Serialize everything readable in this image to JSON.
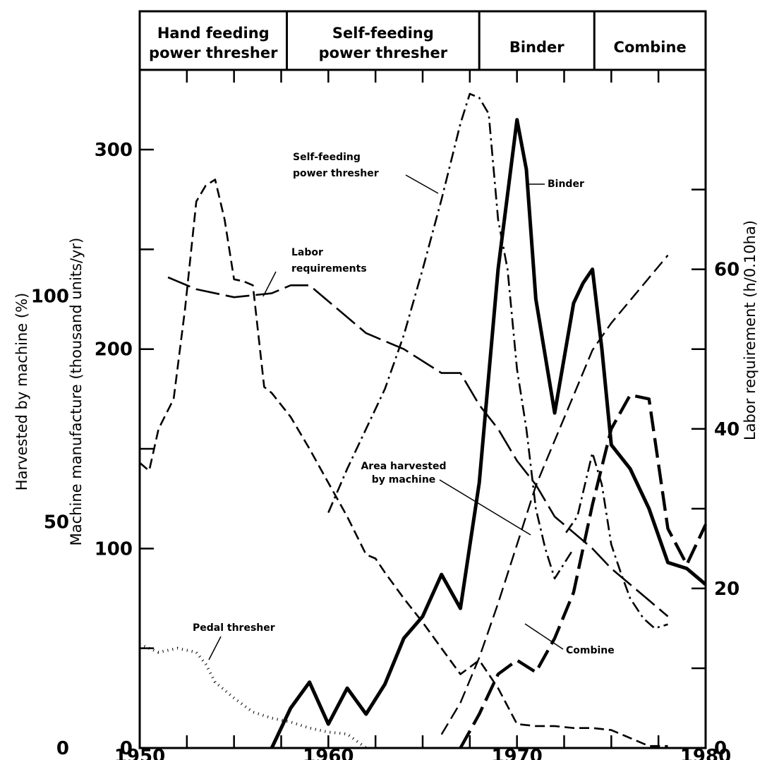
{
  "chart_data": {
    "type": "line",
    "x_range": [
      1950,
      1980
    ],
    "x_ticks": [
      "1950",
      "1960",
      "1970",
      "1980"
    ],
    "bands": [
      {
        "label_lines": [
          "Hand feeding",
          "power thresher"
        ],
        "start": 1950,
        "end": 1957.8
      },
      {
        "label_lines": [
          "Self-feeding",
          "power thresher"
        ],
        "start": 1957.8,
        "end": 1968
      },
      {
        "label_lines": [
          "Binder"
        ],
        "start": 1968,
        "end": 1974.1
      },
      {
        "label_lines": [
          "Combine"
        ],
        "start": 1974.1,
        "end": 1980
      }
    ],
    "y_axes": {
      "percent": {
        "title": "Harvested by machine (%)",
        "range": [
          0,
          150
        ],
        "ticks": [
          "0",
          "50",
          "100"
        ],
        "tick_values": [
          0,
          50,
          100
        ]
      },
      "manufacture": {
        "title": "Machine manufacture (thousand units/yr)",
        "range": [
          0,
          340
        ],
        "ticks": [
          "0",
          "100",
          "200",
          "300"
        ],
        "tick_values": [
          0,
          100,
          200,
          300
        ]
      },
      "labor": {
        "title": "Labor requirement (h/0.10ha)",
        "range": [
          0,
          85
        ],
        "ticks": [
          "0",
          "20",
          "40",
          "60"
        ],
        "tick_values": [
          0,
          20,
          40,
          60
        ]
      }
    },
    "series": [
      {
        "name": "Labor requirements",
        "axis": "labor",
        "style": "long-dash",
        "label_lines": [
          "Labor",
          "requirements"
        ],
        "x": [
          1951.5,
          1953,
          1955,
          1957,
          1958,
          1959,
          1960,
          1961,
          1962,
          1963,
          1964,
          1965,
          1966,
          1967,
          1968,
          1969,
          1970,
          1971,
          1972,
          1973,
          1974,
          1975,
          1976,
          1977,
          1978
        ],
        "y": [
          59,
          57.5,
          56.5,
          57,
          58,
          58,
          56,
          54,
          52,
          51,
          50,
          48.5,
          47,
          47,
          43,
          40,
          36,
          33,
          29,
          27,
          25,
          22.5,
          20.5,
          18.5,
          16.5
        ]
      },
      {
        "name": "Area harvested by machine",
        "axis": "percent",
        "style": "medium-dash",
        "label_lines": [
          "Area harvested",
          "by machine"
        ],
        "x": [
          1966,
          1967,
          1968,
          1969,
          1970,
          1971,
          1972,
          1973,
          1974,
          1975,
          1976,
          1977,
          1978
        ],
        "y": [
          3,
          10,
          20,
          32,
          45,
          58,
          68,
          78,
          88,
          94,
          99,
          104,
          109
        ]
      },
      {
        "name": "Hand feeding power thresher",
        "axis": "manufacture",
        "style": "dash",
        "x": [
          1950,
          1950.5,
          1951,
          1951.8,
          1952.4,
          1953,
          1953.5,
          1954,
          1954.5,
          1955,
          1955.5,
          1956,
          1956.6,
          1957,
          1958,
          1959,
          1960,
          1961,
          1962,
          1962.5,
          1963,
          1964,
          1965,
          1966,
          1967,
          1968,
          1969,
          1970,
          1971,
          1972,
          1973,
          1974,
          1975,
          1976,
          1977,
          1978
        ],
        "y": [
          143,
          139,
          160,
          175,
          220,
          274,
          282,
          285,
          265,
          235,
          234,
          232,
          181,
          178,
          166,
          150,
          133,
          116,
          97,
          95,
          88,
          75,
          63,
          50,
          37,
          44,
          30,
          12,
          11,
          11,
          10,
          10,
          9,
          5,
          1,
          1
        ]
      },
      {
        "name": "Self-feeding power thresher",
        "axis": "manufacture",
        "style": "dash-dot",
        "label_lines": [
          "Self-feeding",
          "power thresher"
        ],
        "x": [
          1960,
          1961,
          1962,
          1963,
          1964,
          1965,
          1966,
          1967,
          1967.5,
          1968,
          1968.5,
          1969,
          1969.5,
          1970,
          1970.5,
          1971,
          1971.5,
          1972,
          1973
        ],
        "y": [
          118,
          140,
          160,
          180,
          207,
          240,
          275,
          313,
          328,
          326,
          318,
          265,
          240,
          190,
          160,
          120,
          100,
          85,
          100
        ]
      },
      {
        "name": "Binder",
        "axis": "manufacture",
        "style": "solid-thick",
        "label_lines": [
          "Binder"
        ],
        "x": [
          1957,
          1957.5,
          1958,
          1959,
          1960,
          1961,
          1962,
          1963,
          1964,
          1965,
          1966,
          1967,
          1968,
          1969,
          1970,
          1970.5,
          1971,
          1972,
          1973,
          1973.5,
          1974,
          1974.5,
          1975,
          1976,
          1977,
          1978,
          1979,
          1980
        ],
        "y": [
          0,
          10,
          20,
          33,
          12,
          30,
          17,
          32,
          55,
          66,
          87,
          70,
          133,
          240,
          315,
          290,
          225,
          168,
          223,
          233,
          240,
          200,
          152,
          140,
          120,
          93,
          90,
          82
        ]
      },
      {
        "name": "Combine",
        "axis": "manufacture",
        "style": "long-dash-thick",
        "label_lines": [
          "Combine"
        ],
        "x": [
          1967,
          1968,
          1969,
          1970,
          1971,
          1972,
          1973,
          1974,
          1975,
          1976,
          1977,
          1978,
          1979,
          1980
        ],
        "y": [
          0,
          17,
          37,
          44,
          38,
          55,
          78,
          122,
          160,
          177,
          175,
          110,
          92,
          112
        ]
      },
      {
        "name": "Combine (upper)",
        "axis": "manufacture",
        "style": "dash-dot",
        "x": [
          1972.6,
          1973.2,
          1974,
          1974.5,
          1975,
          1975.5,
          1976,
          1976.7,
          1977.3,
          1978
        ],
        "y": [
          108,
          116,
          148,
          132,
          102,
          88,
          75,
          65,
          60,
          62
        ]
      },
      {
        "name": "Pedal thresher",
        "axis": "manufacture",
        "style": "dotted",
        "label_lines": [
          "Pedal thresher"
        ],
        "x": [
          1950,
          1950.5,
          1951,
          1952,
          1953,
          1953.5,
          1954,
          1955,
          1956,
          1957,
          1958,
          1959,
          1960,
          1961,
          1962
        ],
        "y": [
          52,
          50,
          48,
          50,
          48,
          42,
          33,
          25,
          18,
          15,
          13,
          10,
          8,
          7,
          0
        ]
      }
    ]
  }
}
